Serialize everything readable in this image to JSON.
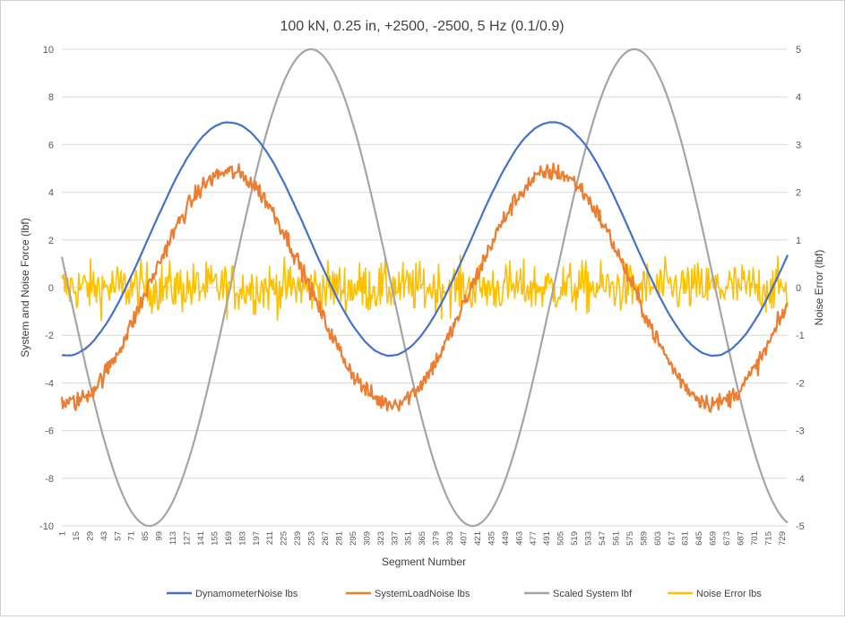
{
  "chart_data": {
    "type": "line",
    "title": "100 kN, 0.25 in, +2500, -2500,  5 Hz (0.1/0.9)",
    "xlabel": "Segment Number",
    "ylabel": "System and Noise Force (lbf)",
    "y2label": "Noise Error (lbf)",
    "ylim": [
      -10,
      10
    ],
    "y2lim": [
      -5,
      5
    ],
    "yticks": [
      "10",
      "8",
      "6",
      "4",
      "2",
      "0",
      "-2",
      "-4",
      "-6",
      "-8",
      "-10"
    ],
    "y2ticks": [
      "5",
      "4",
      "3",
      "2",
      "1",
      "0",
      "-1",
      "-2",
      "-3",
      "-4",
      "-5"
    ],
    "xlim": [
      1,
      735
    ],
    "xticks": [
      "1",
      "15",
      "29",
      "43",
      "57",
      "71",
      "85",
      "99",
      "113",
      "127",
      "141",
      "155",
      "169",
      "183",
      "197",
      "211",
      "225",
      "239",
      "253",
      "267",
      "281",
      "295",
      "309",
      "323",
      "337",
      "351",
      "365",
      "379",
      "393",
      "407",
      "421",
      "435",
      "449",
      "463",
      "477",
      "491",
      "505",
      "519",
      "533",
      "547",
      "561",
      "575",
      "589",
      "603",
      "617",
      "631",
      "645",
      "659",
      "673",
      "687",
      "701",
      "715",
      "729"
    ],
    "grid": "horizontal",
    "legend": "bottom",
    "series": [
      {
        "name": "DynamometerNoise lbs",
        "color": "#4472C4",
        "axis": "left",
        "model": {
          "kind": "sine",
          "offset": 2.05,
          "amplitude": 4.9,
          "period": 327,
          "peak_segment": 170,
          "noise": 0.05
        },
        "keypoints": [
          [
            1,
            -2.8
          ],
          [
            170,
            6.95
          ],
          [
            333,
            -2.85
          ],
          [
            497,
            6.95
          ],
          [
            660,
            -2.9
          ],
          [
            735,
            2.0
          ]
        ]
      },
      {
        "name": "SystemLoadNoise lbs",
        "color": "#ED7D31",
        "axis": "left",
        "model": {
          "kind": "sine",
          "offset": 0.0,
          "amplitude": 4.85,
          "period": 327,
          "peak_segment": 170,
          "noise": 0.55
        },
        "keypoints": [
          [
            1,
            -4.7
          ],
          [
            170,
            5.0
          ],
          [
            333,
            -4.8
          ],
          [
            497,
            5.0
          ],
          [
            660,
            -4.9
          ],
          [
            735,
            -0.3
          ]
        ]
      },
      {
        "name": "Scaled System lbf",
        "color": "#A5A5A5",
        "axis": "left",
        "model": {
          "kind": "sine",
          "offset": 0.0,
          "amplitude": 10.0,
          "period": 327,
          "peak_segment": 253,
          "noise": 0.0
        },
        "keypoints": [
          [
            1,
            2.3
          ],
          [
            90,
            -10.0
          ],
          [
            253,
            10.0
          ],
          [
            417,
            -10.0
          ],
          [
            580,
            10.0
          ],
          [
            735,
            -10.0
          ]
        ]
      },
      {
        "name": "Noise Error lbs",
        "color": "#FFC000",
        "axis": "right",
        "model": {
          "kind": "noise",
          "offset": 0.0,
          "amplitude": 0.0,
          "period": 327,
          "peak_segment": 0,
          "noise": 0.38
        },
        "keypoints": [
          [
            1,
            -0.1
          ],
          [
            350,
            1.05
          ],
          [
            620,
            -1.0
          ],
          [
            735,
            0.0
          ]
        ]
      }
    ]
  }
}
